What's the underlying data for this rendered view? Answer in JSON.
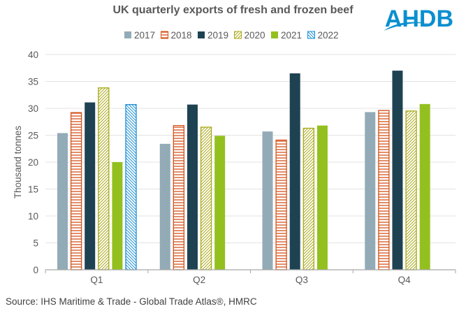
{
  "chart_data": {
    "type": "bar",
    "title": "UK quarterly exports of fresh and frozen beef",
    "ylabel": "Thousand tonnes",
    "xlabel": "",
    "ylim": [
      0,
      40
    ],
    "yticks": [
      0,
      5,
      10,
      15,
      20,
      25,
      30,
      35,
      40
    ],
    "grid": true,
    "legend_position": "top",
    "categories": [
      "Q1",
      "Q2",
      "Q3",
      "Q4"
    ],
    "series": [
      {
        "name": "2017",
        "color": "#93abb7",
        "pattern": "solid",
        "values": [
          25.4,
          23.4,
          25.7,
          29.3
        ]
      },
      {
        "name": "2018",
        "color": "#d4521a",
        "pattern": "horizontal",
        "values": [
          29.2,
          26.8,
          24.1,
          29.6
        ]
      },
      {
        "name": "2019",
        "color": "#1e4252",
        "pattern": "solid",
        "values": [
          31.1,
          30.7,
          36.5,
          37.0
        ]
      },
      {
        "name": "2020",
        "color": "#a8a818",
        "pattern": "diagonal",
        "values": [
          33.8,
          26.5,
          26.3,
          29.5
        ]
      },
      {
        "name": "2021",
        "color": "#93c01f",
        "pattern": "solid",
        "values": [
          20.0,
          24.9,
          26.8,
          30.8
        ]
      },
      {
        "name": "2022",
        "color": "#1b8fd6",
        "pattern": "diagonal-back",
        "values": [
          30.7,
          null,
          null,
          null
        ]
      }
    ],
    "source": "Source: IHS Maritime & Trade - Global Trade Atlas®, HMRC"
  },
  "logo": {
    "text": "AHDB",
    "color": "#0a8fcf"
  }
}
